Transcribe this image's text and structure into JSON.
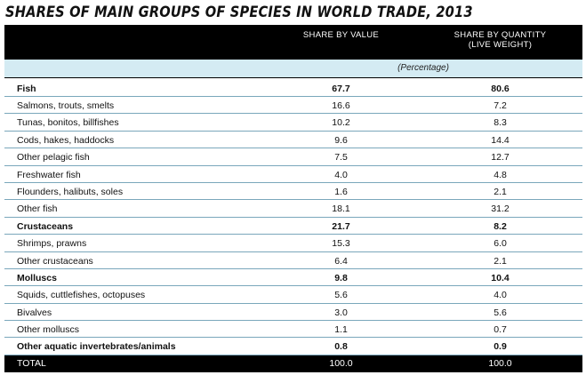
{
  "title": "SHARES OF MAIN GROUPS OF SPECIES IN WORLD TRADE, 2013",
  "columns": {
    "value": "SHARE BY VALUE",
    "quantity_line1": "SHARE BY QUANTITY",
    "quantity_line2": "(LIVE WEIGHT)"
  },
  "unit": "(Percentage)",
  "rows": [
    {
      "label": "Fish",
      "value": "67.7",
      "quantity": "80.6",
      "bold": true
    },
    {
      "label": "Salmons, trouts, smelts",
      "value": "16.6",
      "quantity": "7.2"
    },
    {
      "label": "Tunas, bonitos, billfishes",
      "value": "10.2",
      "quantity": "8.3"
    },
    {
      "label": "Cods, hakes, haddocks",
      "value": "9.6",
      "quantity": "14.4"
    },
    {
      "label": "Other pelagic fish",
      "value": "7.5",
      "quantity": "12.7"
    },
    {
      "label": "Freshwater fish",
      "value": "4.0",
      "quantity": "4.8"
    },
    {
      "label": "Flounders, halibuts, soles",
      "value": "1.6",
      "quantity": "2.1"
    },
    {
      "label": "Other fish",
      "value": "18.1",
      "quantity": "31.2"
    },
    {
      "label": "Crustaceans",
      "value": "21.7",
      "quantity": "8.2",
      "bold": true
    },
    {
      "label": "Shrimps, prawns",
      "value": "15.3",
      "quantity": "6.0"
    },
    {
      "label": "Other crustaceans",
      "value": "6.4",
      "quantity": "2.1"
    },
    {
      "label": "Molluscs",
      "value": "9.8",
      "quantity": "10.4",
      "bold": true
    },
    {
      "label": "Squids, cuttlefishes, octopuses",
      "value": "5.6",
      "quantity": "4.0"
    },
    {
      "label": "Bivalves",
      "value": "3.0",
      "quantity": "5.6"
    },
    {
      "label": "Other molluscs",
      "value": "1.1",
      "quantity": "0.7"
    },
    {
      "label": "Other aquatic invertebrates/animals",
      "value": "0.8",
      "quantity": "0.9",
      "bold": true
    }
  ],
  "total": {
    "label": "TOTAL",
    "value": "100.0",
    "quantity": "100.0"
  },
  "colors": {
    "header_bg": "#000000",
    "subheader_bg": "#d4ebf3",
    "row_rule": "#7aa7bb"
  }
}
